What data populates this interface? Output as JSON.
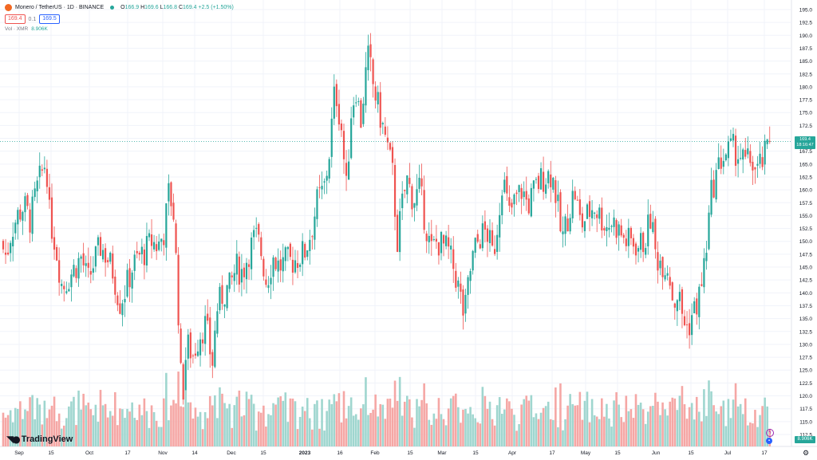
{
  "legend": {
    "symbol": "Monero / TetherUS · 1D · BINANCE",
    "ohlc": [
      {
        "k": "O",
        "v": "166.9"
      },
      {
        "k": "H",
        "v": "169.6"
      },
      {
        "k": "L",
        "v": "166.8"
      },
      {
        "k": "C",
        "v": "169.4"
      },
      {
        "k": "",
        "v": "+2.5 (+1.50%)"
      }
    ],
    "bid": "169.4",
    "spread": "0.1",
    "ask": "169.5",
    "volume_label": "Vol · XMR",
    "volume_value": "8.906K"
  },
  "price_axis": {
    "ticks": [
      "195.0",
      "192.5",
      "190.0",
      "187.5",
      "185.0",
      "182.5",
      "180.0",
      "177.5",
      "175.0",
      "172.5",
      "170.0",
      "167.5",
      "165.0",
      "162.5",
      "160.0",
      "157.5",
      "155.0",
      "152.5",
      "150.0",
      "147.5",
      "145.0",
      "142.5",
      "140.0",
      "137.5",
      "135.0",
      "132.5",
      "130.0",
      "127.5",
      "125.0",
      "122.5",
      "120.0",
      "117.5",
      "115.0",
      "112.5"
    ],
    "last_price": "169.4",
    "countdown": "18:16:47",
    "volume_last": "8.906K"
  },
  "time_axis": {
    "labels": [
      "Sep",
      "15",
      "Oct",
      "17",
      "Nov",
      "14",
      "Dec",
      "15",
      "2023",
      "16",
      "Feb",
      "15",
      "Mar",
      "15",
      "Apr",
      "17",
      "May",
      "15",
      "Jun",
      "15",
      "Jul",
      "17"
    ]
  },
  "branding": {
    "logo_text": "TradingView"
  },
  "colors": {
    "up": "#26a69a",
    "down": "#ef5350",
    "up_vol": "#9fd6cf",
    "down_vol": "#f5a7a5",
    "grid": "#f0f3fa",
    "axis_text": "#131722"
  },
  "chart_data": {
    "type": "candlestick",
    "title": "Monero / TetherUS · 1D · BINANCE",
    "xlabel": "",
    "ylabel": "",
    "ylim": [
      112.5,
      195.0
    ],
    "y_ticks": [
      195.0,
      192.5,
      190.0,
      187.5,
      185.0,
      182.5,
      180.0,
      177.5,
      175.0,
      172.5,
      170.0,
      167.5,
      165.0,
      162.5,
      160.0,
      157.5,
      155.0,
      152.5,
      150.0,
      147.5,
      145.0,
      142.5,
      140.0,
      137.5,
      135.0,
      132.5,
      130.0,
      127.5,
      125.0,
      122.5,
      120.0,
      117.5,
      115.0,
      112.5
    ],
    "x_labels": [
      "Sep",
      "15",
      "Oct",
      "17",
      "Nov",
      "14",
      "Dec",
      "15",
      "2023",
      "16",
      "Feb",
      "15",
      "Mar",
      "15",
      "Apr",
      "17",
      "May",
      "15",
      "Jun",
      "15",
      "Jul",
      "17"
    ],
    "close_path": [
      [
        0,
        150
      ],
      [
        8,
        147
      ],
      [
        14,
        152
      ],
      [
        22,
        155
      ],
      [
        30,
        157
      ],
      [
        38,
        154
      ],
      [
        46,
        160
      ],
      [
        54,
        164
      ],
      [
        58,
        166
      ],
      [
        62,
        155
      ],
      [
        70,
        149
      ],
      [
        78,
        141
      ],
      [
        86,
        143
      ],
      [
        94,
        145
      ],
      [
        102,
        147
      ],
      [
        110,
        142
      ],
      [
        118,
        146
      ],
      [
        126,
        149
      ],
      [
        134,
        147
      ],
      [
        142,
        144
      ],
      [
        150,
        138
      ],
      [
        158,
        141
      ],
      [
        166,
        145
      ],
      [
        174,
        147
      ],
      [
        182,
        148
      ],
      [
        190,
        150
      ],
      [
        198,
        149
      ],
      [
        206,
        152
      ],
      [
        212,
        160
      ],
      [
        218,
        155
      ],
      [
        224,
        135
      ],
      [
        228,
        118
      ],
      [
        234,
        130
      ],
      [
        242,
        128
      ],
      [
        250,
        132
      ],
      [
        258,
        134
      ],
      [
        266,
        126
      ],
      [
        272,
        137
      ],
      [
        280,
        140
      ],
      [
        288,
        141
      ],
      [
        296,
        145
      ],
      [
        304,
        144
      ],
      [
        312,
        148
      ],
      [
        320,
        151
      ],
      [
        326,
        149
      ],
      [
        334,
        142
      ],
      [
        342,
        147
      ],
      [
        350,
        145
      ],
      [
        358,
        146
      ],
      [
        366,
        146
      ],
      [
        374,
        147
      ],
      [
        382,
        148
      ],
      [
        390,
        152
      ],
      [
        398,
        158
      ],
      [
        406,
        160
      ],
      [
        412,
        166
      ],
      [
        420,
        180
      ],
      [
        428,
        172
      ],
      [
        434,
        160
      ],
      [
        440,
        175
      ],
      [
        446,
        180
      ],
      [
        452,
        173
      ],
      [
        458,
        182
      ],
      [
        462,
        186
      ],
      [
        468,
        180
      ],
      [
        474,
        176
      ],
      [
        480,
        172
      ],
      [
        486,
        168
      ],
      [
        492,
        163
      ],
      [
        498,
        150
      ],
      [
        504,
        157
      ],
      [
        510,
        162
      ],
      [
        518,
        158
      ],
      [
        526,
        160
      ],
      [
        534,
        153
      ],
      [
        540,
        148
      ],
      [
        548,
        150
      ],
      [
        556,
        149
      ],
      [
        562,
        148
      ],
      [
        570,
        144
      ],
      [
        576,
        140
      ],
      [
        582,
        135
      ],
      [
        588,
        143
      ],
      [
        594,
        148
      ],
      [
        602,
        151
      ],
      [
        610,
        152
      ],
      [
        618,
        147
      ],
      [
        624,
        154
      ],
      [
        630,
        163
      ],
      [
        638,
        155
      ],
      [
        646,
        158
      ],
      [
        654,
        160
      ],
      [
        662,
        157
      ],
      [
        670,
        160
      ],
      [
        678,
        162
      ],
      [
        686,
        163
      ],
      [
        692,
        163
      ],
      [
        698,
        158
      ],
      [
        704,
        150
      ],
      [
        712,
        155
      ],
      [
        720,
        160
      ],
      [
        728,
        153
      ],
      [
        736,
        155
      ],
      [
        744,
        157
      ],
      [
        752,
        155
      ],
      [
        760,
        153
      ],
      [
        768,
        154
      ],
      [
        776,
        152
      ],
      [
        784,
        150
      ],
      [
        792,
        150
      ],
      [
        800,
        149
      ],
      [
        808,
        150
      ],
      [
        816,
        155
      ],
      [
        822,
        147
      ],
      [
        830,
        146
      ],
      [
        838,
        145
      ],
      [
        844,
        138
      ],
      [
        850,
        140
      ],
      [
        856,
        135
      ],
      [
        862,
        133
      ],
      [
        868,
        136
      ],
      [
        874,
        138
      ],
      [
        880,
        142
      ],
      [
        886,
        150
      ],
      [
        892,
        160
      ],
      [
        898,
        163
      ],
      [
        904,
        166
      ],
      [
        910,
        167
      ],
      [
        918,
        168
      ],
      [
        926,
        167
      ],
      [
        934,
        165
      ],
      [
        942,
        166
      ],
      [
        948,
        163
      ],
      [
        954,
        165
      ],
      [
        960,
        167
      ],
      [
        965,
        169.4
      ]
    ],
    "last_price": 169.4
  }
}
